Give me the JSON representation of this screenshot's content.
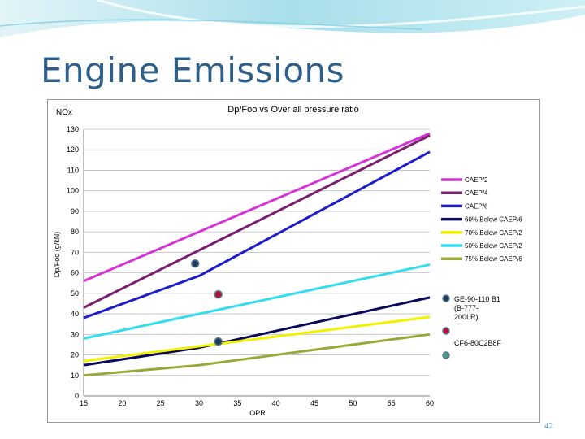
{
  "slide": {
    "title": "Engine Emissions",
    "page_number": "42"
  },
  "chart_data": {
    "type": "line",
    "title": "Dp/Foo vs Over all pressure ratio",
    "corner_label": "NOx",
    "xlabel": "OPR",
    "ylabel": "Dp/Foo (g/kN)",
    "xlim": [
      15,
      60
    ],
    "ylim": [
      0,
      130
    ],
    "xticks": [
      15,
      20,
      25,
      30,
      35,
      40,
      45,
      50,
      55,
      60
    ],
    "yticks": [
      0,
      10,
      20,
      30,
      40,
      50,
      60,
      70,
      80,
      90,
      100,
      110,
      120,
      130
    ],
    "grid": "horizontal",
    "legend_position": "right",
    "series": [
      {
        "name": "CAEP/2",
        "color": "#d633d6",
        "points": [
          [
            15,
            56
          ],
          [
            60,
            128
          ]
        ]
      },
      {
        "name": "CAEP/4",
        "color": "#7b1f70",
        "points": [
          [
            15,
            43
          ],
          [
            60,
            127
          ]
        ]
      },
      {
        "name": "CAEP/6",
        "color": "#1c1cc8",
        "points": [
          [
            15,
            38
          ],
          [
            30,
            58.5
          ],
          [
            60,
            119
          ]
        ]
      },
      {
        "name": "60% Below CAEP/6",
        "color": "#0a0a5a",
        "points": [
          [
            15,
            15
          ],
          [
            30,
            23.5
          ],
          [
            60,
            48
          ]
        ]
      },
      {
        "name": "70% Below CAEP/2",
        "color": "#f2f200",
        "points": [
          [
            15,
            17
          ],
          [
            60,
            38.5
          ]
        ]
      },
      {
        "name": "50% Below CAEP/2",
        "color": "#33ddee",
        "points": [
          [
            15,
            28
          ],
          [
            60,
            64
          ]
        ]
      },
      {
        "name": "75% Below CAEP/6",
        "color": "#9aa83a",
        "points": [
          [
            15,
            10
          ],
          [
            30,
            15
          ],
          [
            60,
            30
          ]
        ]
      }
    ],
    "markers": [
      {
        "name": "GE-90-110 B1 (B-777-200LR)",
        "color": "#1f3a5f",
        "points": [
          [
            29.5,
            64.5
          ],
          [
            32.5,
            26.5
          ]
        ]
      },
      {
        "name": "CF6-80C2B8F",
        "color": "#b0103a",
        "points": [
          [
            32.5,
            49.5
          ]
        ]
      }
    ],
    "marker_legend": [
      {
        "label": "GE-90-110 B1 (B-777-200LR)",
        "color": "#1f3a5f"
      },
      {
        "label": "CF6-80C2B8F",
        "color": "#b0103a"
      },
      {
        "label": "",
        "color": "#4f9a88"
      }
    ]
  }
}
